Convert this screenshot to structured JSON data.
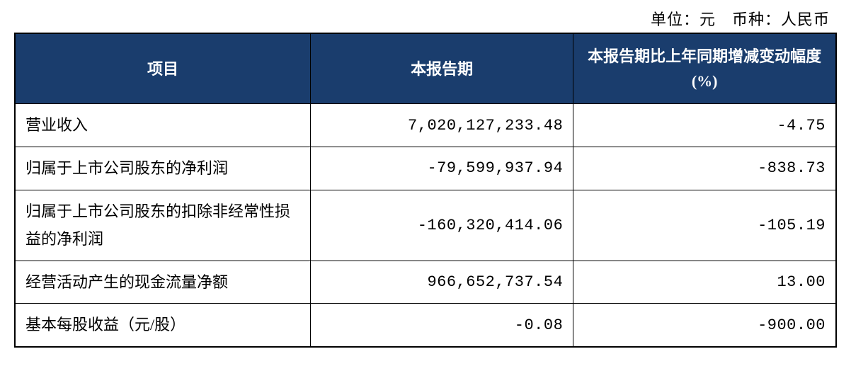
{
  "unit_label": "单位：元　币种：人民币",
  "table": {
    "header_bg_color": "#1a3d6d",
    "header_text_color": "#ffffff",
    "border_color": "#000000",
    "columns": [
      {
        "label": "项目",
        "width_pct": 36,
        "align": "center"
      },
      {
        "label": "本报告期",
        "width_pct": 32,
        "align": "center"
      },
      {
        "label": "本报告期比上年同期增减变动幅度(%)",
        "width_pct": 32,
        "align": "center"
      }
    ],
    "rows": [
      {
        "item": "营业收入",
        "current_period": "7,020,127,233.48",
        "change_pct": "-4.75"
      },
      {
        "item": "归属于上市公司股东的净利润",
        "current_period": "-79,599,937.94",
        "change_pct": "-838.73"
      },
      {
        "item": "归属于上市公司股东的扣除非经常性损益的净利润",
        "current_period": "-160,320,414.06",
        "change_pct": "-105.19"
      },
      {
        "item": "经营活动产生的现金流量净额",
        "current_period": "966,652,737.54",
        "change_pct": "13.00"
      },
      {
        "item": "基本每股收益（元/股）",
        "current_period": "-0.08",
        "change_pct": "-900.00"
      }
    ]
  }
}
